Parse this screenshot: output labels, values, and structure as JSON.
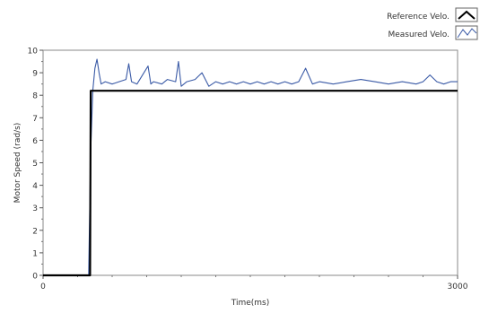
{
  "chart_data": {
    "type": "line",
    "xlabel": "Time(ms)",
    "ylabel": "Motor Speed (rad/s)",
    "xlim": [
      0,
      3000
    ],
    "ylim": [
      0,
      10
    ],
    "x_ticks": [
      "0",
      "3000"
    ],
    "y_ticks": [
      "0",
      "1",
      "2",
      "3",
      "4",
      "5",
      "6",
      "7",
      "8",
      "9",
      "10"
    ],
    "grid": false,
    "legend_position": "top-right",
    "series": [
      {
        "name": "Reference Velo.",
        "color": "#000000",
        "x": [
          0,
          340,
          345,
          3000
        ],
        "y": [
          0,
          0,
          8.2,
          8.2
        ]
      },
      {
        "name": "Measured Velo.",
        "color": "#3a5aa6",
        "x": [
          0,
          330,
          345,
          360,
          375,
          390,
          405,
          420,
          450,
          500,
          550,
          600,
          620,
          640,
          680,
          720,
          760,
          780,
          800,
          860,
          900,
          960,
          980,
          1000,
          1040,
          1100,
          1150,
          1200,
          1250,
          1300,
          1350,
          1400,
          1450,
          1500,
          1550,
          1600,
          1650,
          1700,
          1750,
          1800,
          1850,
          1900,
          1950,
          2000,
          2100,
          2200,
          2300,
          2400,
          2500,
          2600,
          2700,
          2750,
          2800,
          2850,
          2900,
          2950,
          3000
        ],
        "y": [
          0,
          0,
          5.5,
          8.2,
          9.2,
          9.6,
          9.0,
          8.5,
          8.6,
          8.5,
          8.6,
          8.7,
          9.4,
          8.6,
          8.5,
          8.9,
          9.3,
          8.5,
          8.6,
          8.5,
          8.7,
          8.6,
          9.5,
          8.4,
          8.6,
          8.7,
          9.0,
          8.4,
          8.6,
          8.5,
          8.6,
          8.5,
          8.6,
          8.5,
          8.6,
          8.5,
          8.6,
          8.5,
          8.6,
          8.5,
          8.6,
          9.2,
          8.5,
          8.6,
          8.5,
          8.6,
          8.7,
          8.6,
          8.5,
          8.6,
          8.5,
          8.6,
          8.9,
          8.6,
          8.5,
          8.6,
          8.6
        ]
      }
    ]
  }
}
